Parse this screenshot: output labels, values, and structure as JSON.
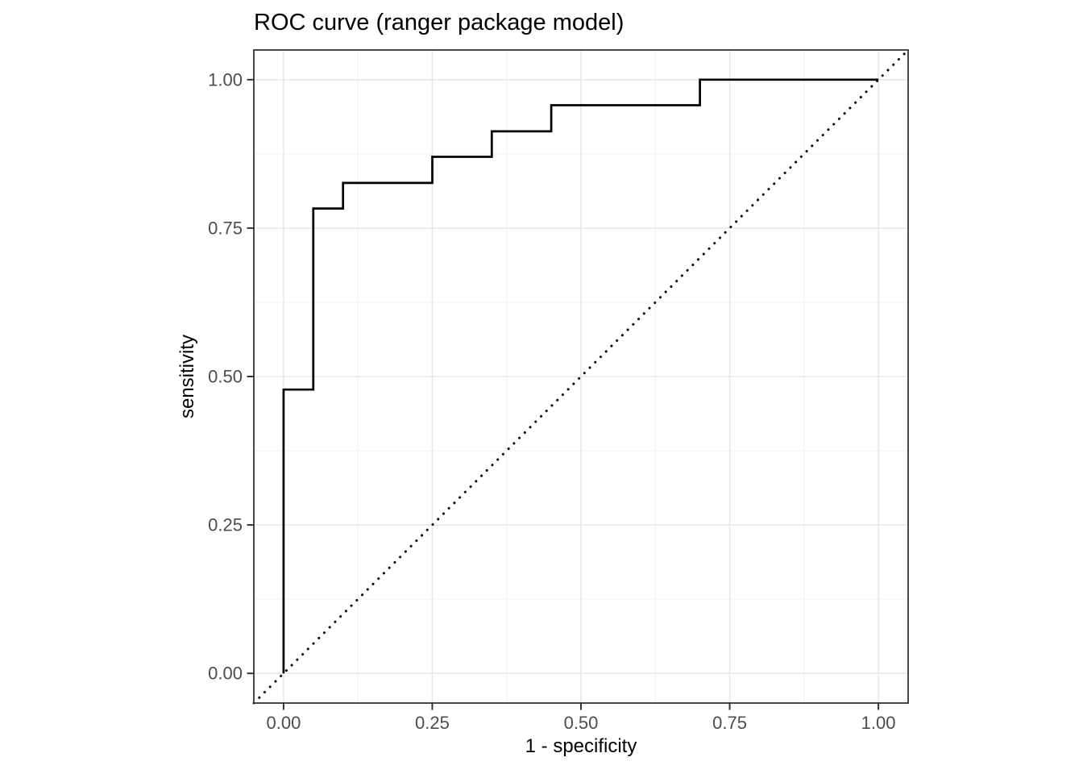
{
  "chart_data": {
    "type": "line",
    "title": "ROC curve (ranger package model)",
    "xlabel": "1 - specificity",
    "ylabel": "sensitivity",
    "xlim": [
      -0.05,
      1.05
    ],
    "ylim": [
      -0.05,
      1.05
    ],
    "x_tick_values": [
      0,
      0.25,
      0.5,
      0.75,
      1
    ],
    "x_tick_labels": [
      "0.00",
      "0.25",
      "0.50",
      "0.75",
      "1.00"
    ],
    "y_tick_values": [
      0,
      0.25,
      0.5,
      0.75,
      1
    ],
    "y_tick_labels": [
      "0.00",
      "0.25",
      "0.50",
      "0.75",
      "1.00"
    ],
    "x_minor_gridlines": [
      0.125,
      0.375,
      0.625,
      0.875
    ],
    "y_minor_gridlines": [
      0.125,
      0.375,
      0.625,
      0.875
    ],
    "grid": "major and minor gridlines, light gray on white panel, dark panel border",
    "legend": "none",
    "series": [
      {
        "name": "ROC step curve",
        "style": "solid step line",
        "color": "#000000",
        "points": [
          [
            0,
            0
          ],
          [
            0,
            0.478
          ],
          [
            0.05,
            0.478
          ],
          [
            0.05,
            0.783
          ],
          [
            0.1,
            0.783
          ],
          [
            0.1,
            0.826
          ],
          [
            0.25,
            0.826
          ],
          [
            0.25,
            0.87
          ],
          [
            0.35,
            0.87
          ],
          [
            0.35,
            0.913
          ],
          [
            0.45,
            0.913
          ],
          [
            0.45,
            0.957
          ],
          [
            0.7,
            0.957
          ],
          [
            0.7,
            1
          ],
          [
            1,
            1
          ]
        ]
      },
      {
        "name": "chance diagonal reference",
        "style": "dotted line",
        "color": "#000000",
        "points": [
          [
            -0.05,
            -0.05
          ],
          [
            1.05,
            1.05
          ]
        ]
      }
    ],
    "colors": {
      "background": "#ffffff",
      "panel_background": "#ffffff",
      "grid_major": "#e8e8e8",
      "grid_minor": "#f3f3f3",
      "panel_border": "#333333",
      "tick_mark": "#333333",
      "tick_label": "#4d4d4d",
      "title": "#000000",
      "axis_title": "#000000",
      "curve": "#000000"
    }
  }
}
